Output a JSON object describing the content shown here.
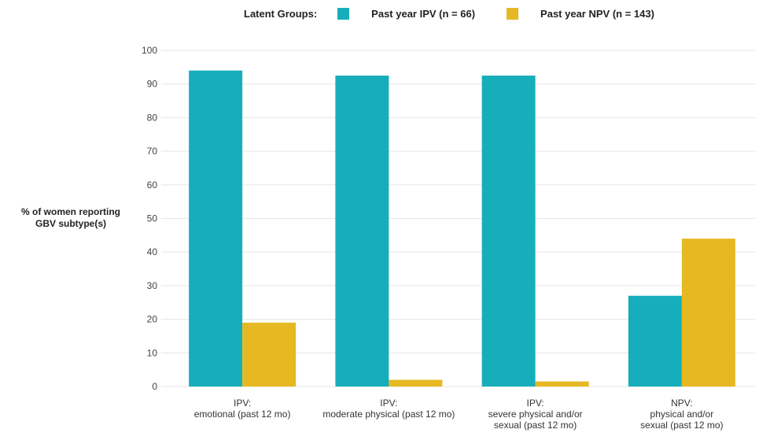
{
  "legend": {
    "title": "Latent Groups:",
    "items": [
      {
        "label": "Past year IPV (n = 66)",
        "color": "#17aebb"
      },
      {
        "label": "Past year NPV (n = 143)",
        "color": "#e6b923"
      }
    ]
  },
  "chart_data": {
    "type": "bar",
    "ylabel": "% of women reporting GBV subtype(s)",
    "ylabel_lines": [
      "% of women reporting",
      "GBV subtype(s)"
    ],
    "xlabel": "",
    "ylim": [
      0,
      100
    ],
    "yticks": [
      0,
      10,
      20,
      30,
      40,
      50,
      60,
      70,
      80,
      90,
      100
    ],
    "grid": true,
    "legend_position": "top",
    "categories": [
      [
        "IPV:",
        "emotional (past 12 mo)"
      ],
      [
        "IPV:",
        "moderate physical (past 12 mo)"
      ],
      [
        "IPV:",
        "severe physical and/or",
        "sexual (past 12 mo)"
      ],
      [
        "NPV:",
        "physical and/or",
        "sexual (past 12 mo)"
      ]
    ],
    "series": [
      {
        "name": "Past year IPV (n = 66)",
        "color": "#17aebb",
        "values": [
          94,
          92.5,
          92.5,
          27
        ]
      },
      {
        "name": "Past year NPV (n = 143)",
        "color": "#e6b923",
        "values": [
          19,
          2,
          1.5,
          44
        ]
      }
    ]
  }
}
